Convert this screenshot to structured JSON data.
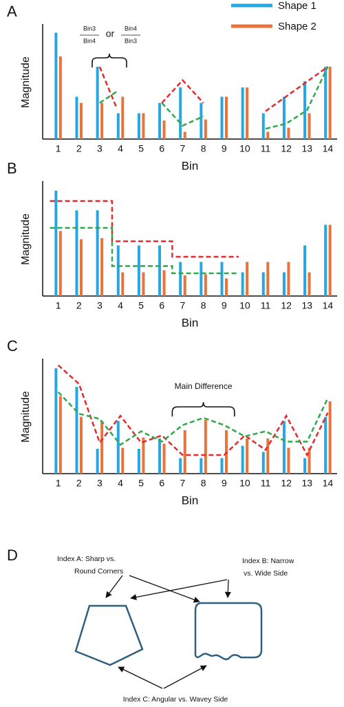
{
  "chart_data": [
    {
      "type": "bar",
      "panel_label": "A",
      "xlabel": "Bin",
      "ylabel": "Magnitude",
      "x": [
        1,
        2,
        3,
        4,
        5,
        6,
        7,
        8,
        9,
        10,
        11,
        12,
        13,
        14
      ],
      "xticks": [
        1,
        2,
        3,
        4,
        5,
        6,
        7,
        8,
        9,
        10,
        11,
        12,
        13,
        14
      ],
      "xlim": [
        0.25,
        14.45
      ],
      "ylim": [
        0,
        11
      ],
      "legend": "upper right",
      "series": [
        {
          "name": "Shape 1",
          "color": "#27a7e1",
          "values": [
            10.3,
            4.1,
            7,
            2.5,
            2.5,
            3.5,
            5,
            3.5,
            4.1,
            5,
            2.5,
            4.1,
            5.6,
            7
          ]
        },
        {
          "name": "Shape 2",
          "color": "#e8733b",
          "values": [
            8,
            3.5,
            3.5,
            4.1,
            2.5,
            1.8,
            0.7,
            1.9,
            4.1,
            5,
            0.7,
            1.1,
            2.5,
            7
          ]
        }
      ],
      "overlays": [
        {
          "color": "#e5282b",
          "x": [
            3,
            3.8
          ],
          "values": [
            7,
            3.1
          ]
        },
        {
          "color": "#2ea84a",
          "x": [
            3,
            3.9
          ],
          "values": [
            3.5,
            4.7
          ]
        },
        {
          "color": "#e5282b",
          "x": [
            6,
            7,
            8
          ],
          "values": [
            3.5,
            5.7,
            3.5
          ]
        },
        {
          "color": "#2ea84a",
          "x": [
            6,
            7,
            8
          ],
          "values": [
            3.5,
            1.3,
            2.2
          ]
        },
        {
          "color": "#e5282b",
          "x": [
            11,
            14
          ],
          "values": [
            2.7,
            7
          ]
        },
        {
          "color": "#2ea84a",
          "x": [
            11,
            12,
            13,
            14
          ],
          "values": [
            1,
            1.5,
            2.8,
            7
          ]
        }
      ],
      "annotation": {
        "fraction_1": {
          "numerator": "Bin3",
          "denominator": "Bin4"
        },
        "joiner": "or",
        "fraction_2": {
          "numerator": "Bin4",
          "denominator": "Bin3"
        }
      }
    },
    {
      "type": "bar",
      "panel_label": "B",
      "xlabel": "Bin",
      "ylabel": "Magnitude",
      "x": [
        1,
        2,
        3,
        4,
        5,
        6,
        7,
        8,
        9,
        10,
        11,
        12,
        13,
        14
      ],
      "xticks": [
        1,
        2,
        3,
        4,
        5,
        6,
        7,
        8,
        9,
        10,
        11,
        12,
        13,
        14
      ],
      "xlim": [
        0.25,
        14.45
      ],
      "ylim": [
        0,
        11
      ],
      "series": [
        {
          "color": "#27a7e1",
          "values": [
            10.2,
            8.3,
            8.3,
            4.9,
            4.9,
            4.9,
            3.3,
            3.3,
            3.3,
            2.3,
            2.3,
            2.3,
            4.9,
            6.9
          ]
        },
        {
          "color": "#e8733b",
          "values": [
            6.3,
            5.5,
            5.6,
            2.3,
            2.3,
            2.5,
            2,
            2.1,
            1.7,
            3.3,
            3.3,
            3.3,
            2.3,
            6.9
          ]
        }
      ],
      "overlays": [
        {
          "color": "#e5282b",
          "x": [
            0.6,
            3.6,
            3.6,
            6.5,
            6.5,
            9.7
          ],
          "values": [
            9.2,
            9.2,
            5.3,
            5.3,
            3.8,
            3.8
          ]
        },
        {
          "color": "#2ea84a",
          "x": [
            0.6,
            3.6,
            3.6,
            6.5,
            6.5,
            9.7
          ],
          "values": [
            6.6,
            6.6,
            2.9,
            2.9,
            2.2,
            2.2
          ]
        }
      ]
    },
    {
      "type": "bar",
      "panel_label": "C",
      "xlabel": "Bin",
      "ylabel": "Magnitude",
      "x": [
        1,
        2,
        3,
        4,
        5,
        6,
        7,
        8,
        9,
        10,
        11,
        12,
        13,
        14
      ],
      "xticks": [
        1,
        2,
        3,
        4,
        5,
        6,
        7,
        8,
        9,
        10,
        11,
        12,
        13,
        14
      ],
      "xlim": [
        0.25,
        14.45
      ],
      "ylim": [
        0,
        11
      ],
      "series": [
        {
          "color": "#27a7e1",
          "values": [
            10.2,
            8.4,
            2.4,
            5.1,
            2.4,
            3.4,
            1.5,
            1.5,
            1.5,
            2.7,
            2.1,
            5.1,
            1.5,
            5.5
          ]
        },
        {
          "color": "#e8733b",
          "values": [
            7.5,
            5.5,
            5.1,
            2.5,
            3.5,
            2.9,
            4.2,
            5.2,
            4.2,
            3.4,
            3.4,
            2.5,
            2.5,
            7
          ]
        }
      ],
      "overlays": [
        {
          "color": "#e5282b",
          "x": [
            1,
            2,
            3,
            4,
            5,
            6,
            7,
            8,
            9,
            10,
            11,
            12,
            13,
            14
          ],
          "values": [
            10.5,
            8.7,
            3,
            5.6,
            3,
            3.7,
            1.8,
            1.8,
            1.8,
            3.7,
            2.3,
            5.6,
            1.8,
            5.9
          ]
        },
        {
          "color": "#2ea84a",
          "x": [
            1,
            2,
            3,
            4,
            5,
            6,
            7,
            8,
            9,
            10,
            11,
            12,
            13,
            14
          ],
          "values": [
            7.9,
            5.8,
            5.3,
            2.8,
            4.1,
            3.1,
            4.7,
            5.4,
            4.7,
            3.6,
            4.1,
            3.1,
            3.1,
            7.3
          ]
        }
      ],
      "annotation": "Main Difference"
    }
  ],
  "diagram": {
    "panel_label": "D",
    "index_a": [
      "Index A: Sharp vs.",
      "Round Corners"
    ],
    "index_b": [
      "Index B: Narrow",
      "vs. Wide Side"
    ],
    "index_c": "Index C: Angular vs. Wavey Side"
  }
}
